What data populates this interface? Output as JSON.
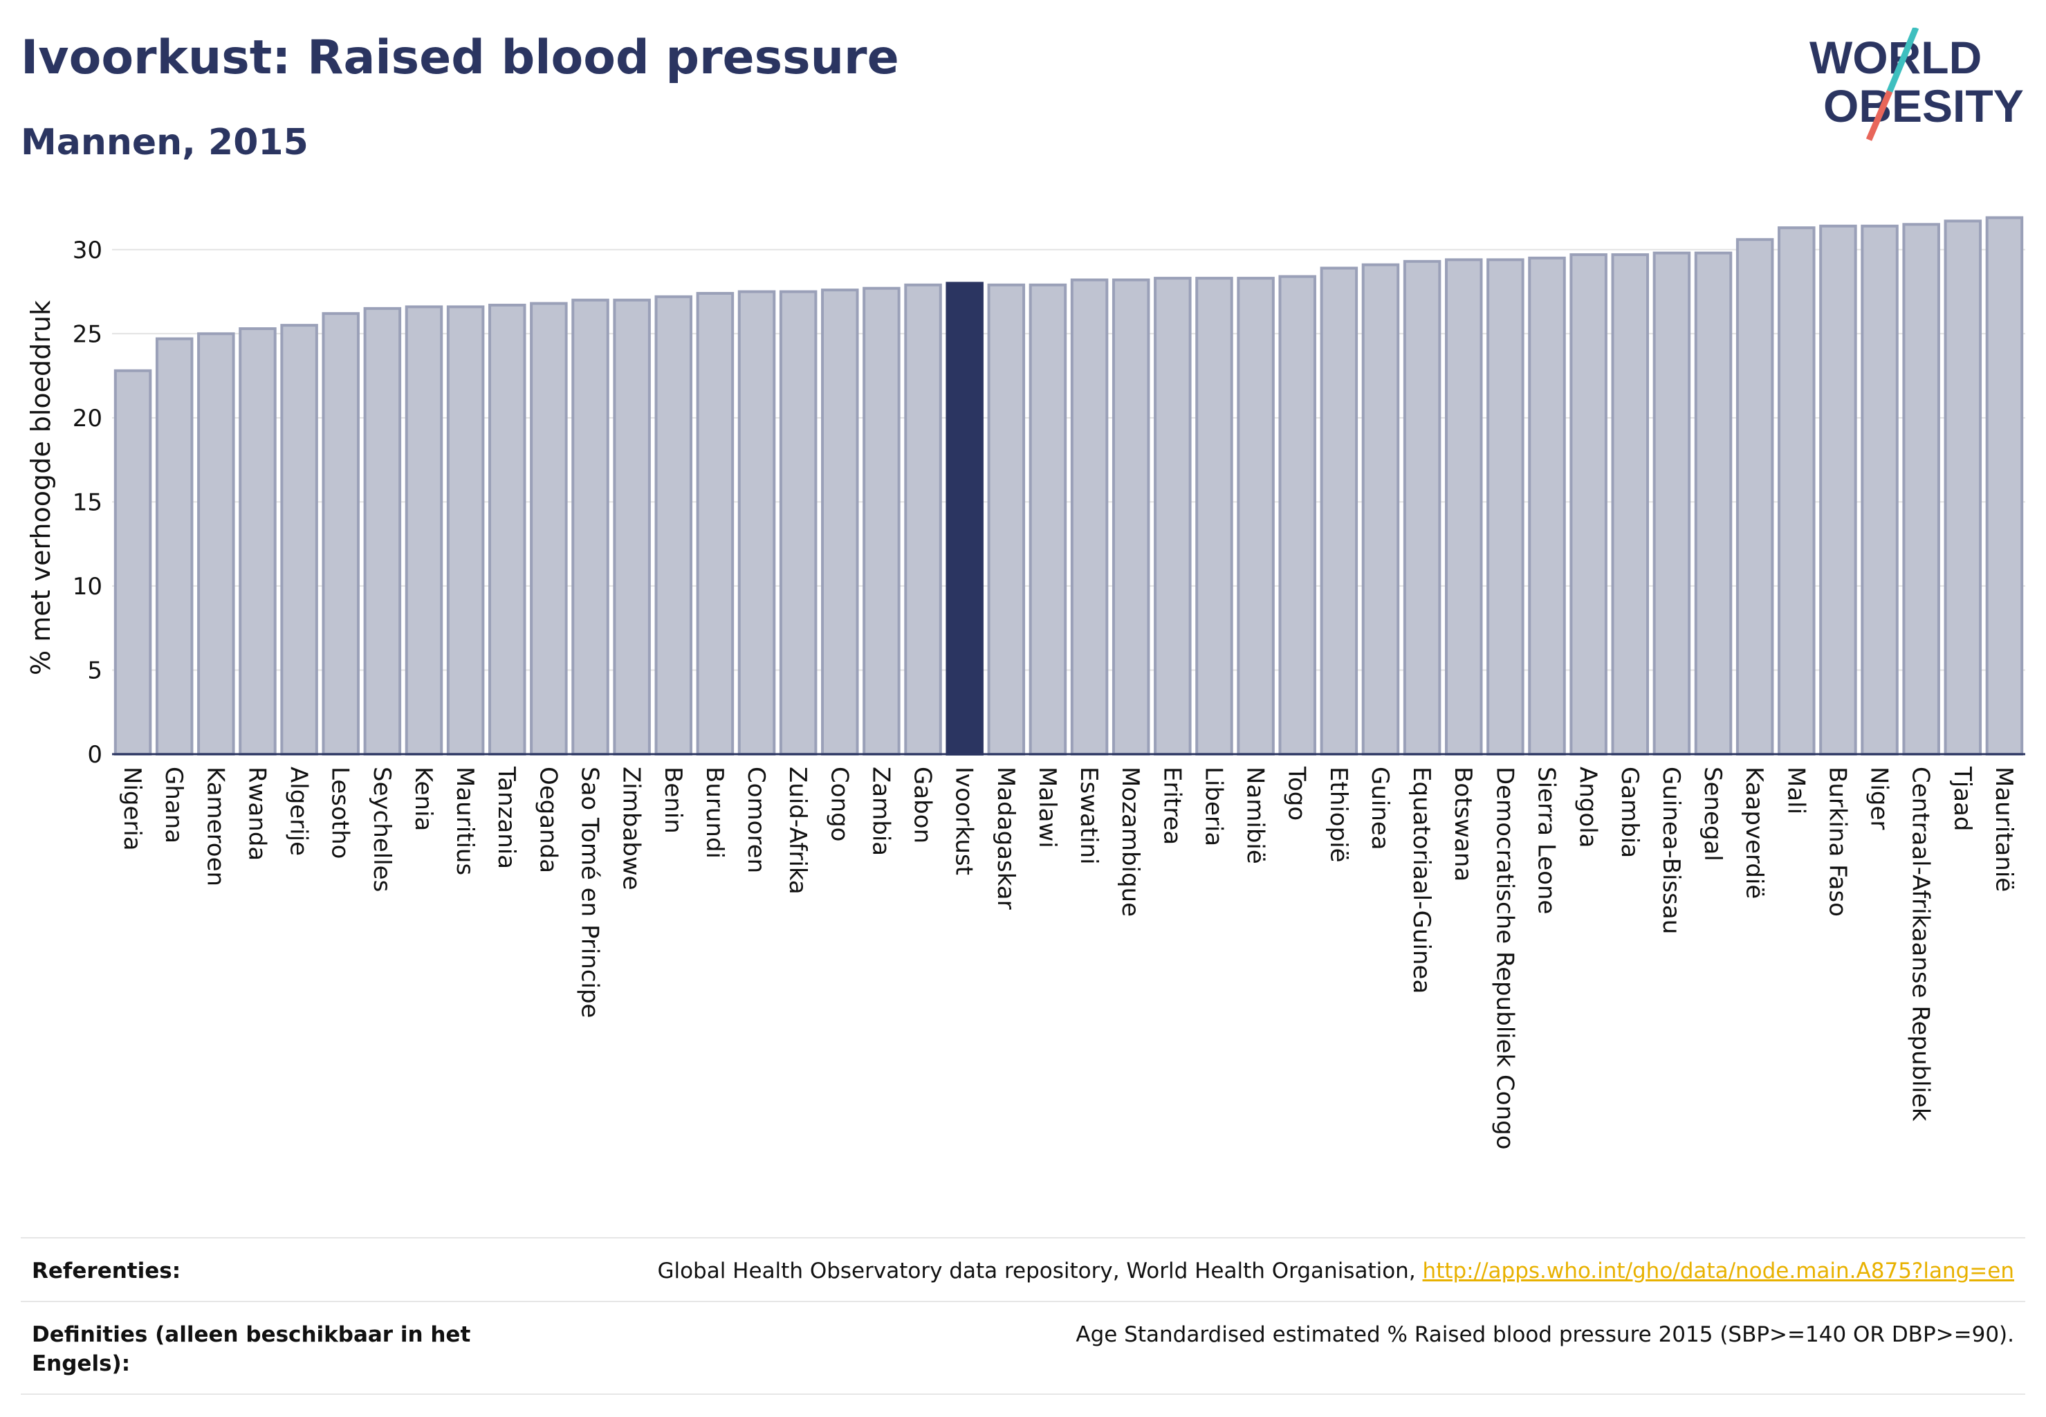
{
  "header": {
    "title": "Ivoorkust: Raised blood pressure",
    "subtitle": "Mannen, 2015"
  },
  "logo": {
    "line1": "WORLD",
    "line2": "OBESITY",
    "accent_teal": "#3ebfbf",
    "accent_red": "#e8665a",
    "brand_color": "#2b3561"
  },
  "chart_data": {
    "type": "bar",
    "title": "Ivoorkust: Raised blood pressure",
    "subtitle": "Mannen, 2015",
    "ylabel": "% met verhoogde bloeddruk",
    "xlabel": "",
    "ylim": [
      0,
      32.5
    ],
    "yticks": [
      0,
      5,
      10,
      15,
      20,
      25,
      30
    ],
    "grid": true,
    "highlight": "Ivoorkust",
    "colors": {
      "bar": "#bfc3d1",
      "bar_edge": "#9aa0b8",
      "highlight": "#2b3561"
    },
    "categories": [
      "Nigeria",
      "Ghana",
      "Kameroen",
      "Rwanda",
      "Algerije",
      "Lesotho",
      "Seychelles",
      "Kenia",
      "Mauritius",
      "Tanzania",
      "Oeganda",
      "Sao Tomé en Principe",
      "Zimbabwe",
      "Benin",
      "Burundi",
      "Comoren",
      "Zuid-Afrika",
      "Congo",
      "Zambia",
      "Gabon",
      "Ivoorkust",
      "Madagaskar",
      "Malawi",
      "Eswatini",
      "Mozambique",
      "Eritrea",
      "Liberia",
      "Namibië",
      "Togo",
      "Ethiopië",
      "Guinea",
      "Equatoriaal-Guinea",
      "Botswana",
      "Democratische Republiek Congo",
      "Sierra Leone",
      "Angola",
      "Gambia",
      "Guinea-Bissau",
      "Senegal",
      "Kaapverdië",
      "Mali",
      "Burkina Faso",
      "Niger",
      "Centraal-Afrikaanse Republiek",
      "Tjaad",
      "Mauritanië"
    ],
    "values": [
      22.8,
      24.7,
      25.0,
      25.3,
      25.5,
      26.2,
      26.5,
      26.6,
      26.6,
      26.7,
      26.8,
      27.0,
      27.0,
      27.2,
      27.4,
      27.5,
      27.5,
      27.6,
      27.7,
      27.9,
      28.0,
      27.9,
      27.9,
      28.2,
      28.2,
      28.3,
      28.3,
      28.3,
      28.4,
      28.9,
      29.1,
      29.3,
      29.4,
      29.4,
      29.5,
      29.7,
      29.7,
      29.8,
      29.8,
      30.6,
      31.3,
      31.4,
      31.4,
      31.5,
      31.7,
      31.9
    ]
  },
  "references": {
    "label": "Referenties:",
    "text": "Global Health Observatory data repository, World Health Organisation, ",
    "link": "http://apps.who.int/gho/data/node.main.A875?lang=en"
  },
  "definitions": {
    "label": "Definities (alleen beschikbaar in het Engels):",
    "text": "Age Standardised estimated % Raised blood pressure 2015 (SBP>=140 OR DBP>=90)."
  }
}
